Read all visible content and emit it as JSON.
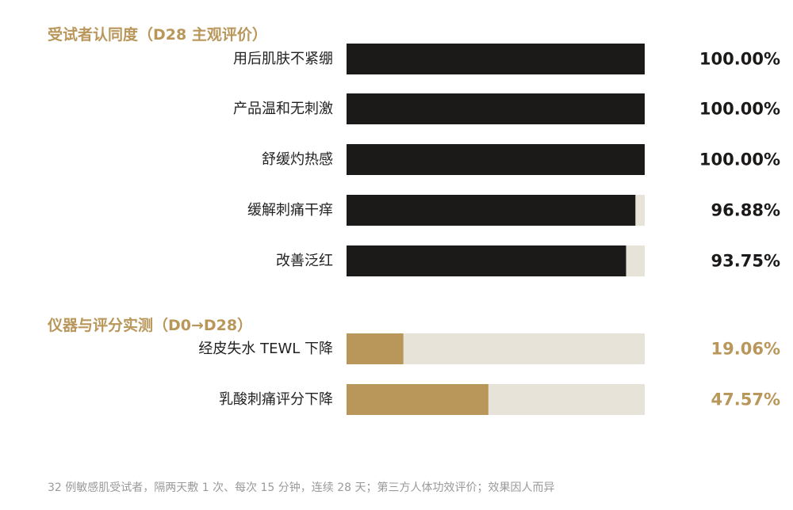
{
  "sections": {
    "subjective_title": "受试者认同度（D28 主观评价）",
    "instrument_title": "仪器与评分实测（D0→D28）"
  },
  "footnote": "32 例敏感肌受试者，隔两天敷 1 次、每次 15 分钟，连续 28 天；第三方人体功效评价；效果因人而异",
  "colors": {
    "title": "#b9975b",
    "bar_dark": "#1c1a19",
    "bar_gold": "#b9975b",
    "track": "#e8e3d9",
    "label": "#222222",
    "value_dark": "#1c1a19",
    "value_gold": "#b9975b"
  },
  "chart_data": [
    {
      "type": "bar",
      "orientation": "horizontal",
      "title": "受试者认同度（D28 主观评价）",
      "categories": [
        "用后肌肤不紧绷",
        "产品温和无刺激",
        "舒缓灼热感",
        "缓解刺痛干痒",
        "改善泛红"
      ],
      "values": [
        100.0,
        100.0,
        100.0,
        96.88,
        93.75
      ],
      "value_labels": [
        "100.00%",
        "100.00%",
        "100.00%",
        "96.88%",
        "93.75%"
      ],
      "xlim": [
        0,
        100
      ],
      "grid": false
    },
    {
      "type": "bar",
      "orientation": "horizontal",
      "title": "仪器与评分实测（D0→D28）",
      "categories": [
        "经皮失水 TEWL 下降",
        "乳酸刺痛评分下降"
      ],
      "values": [
        19.06,
        47.57
      ],
      "value_labels": [
        "19.06%",
        "47.57%"
      ],
      "xlim": [
        0,
        100
      ],
      "grid": false
    }
  ]
}
